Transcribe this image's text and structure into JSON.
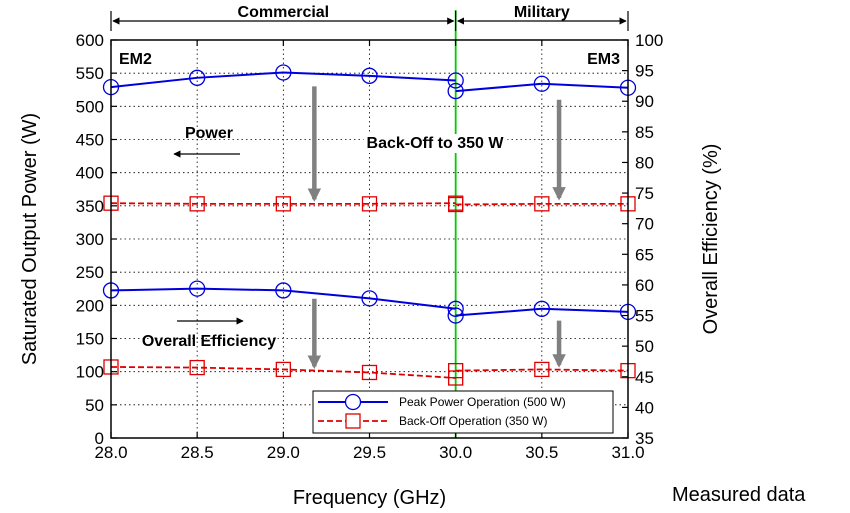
{
  "chart_data": {
    "type": "line",
    "xlabel": "Frequency (GHz)",
    "ylabel_left": "Saturated Output Power (W)",
    "ylabel_right": "Overall Efficiency (%)",
    "x_ticks": [
      "28.0",
      "28.5",
      "29.0",
      "29.5",
      "30.0",
      "30.5",
      "31.0"
    ],
    "y_left_ticks": [
      "0",
      "50",
      "100",
      "150",
      "200",
      "250",
      "300",
      "350",
      "400",
      "450",
      "500",
      "550",
      "600"
    ],
    "y_right_ticks": [
      "35",
      "40",
      "45",
      "50",
      "55",
      "60",
      "65",
      "70",
      "75",
      "80",
      "85",
      "90",
      "95",
      "100"
    ],
    "xlim": [
      28.0,
      31.0
    ],
    "ylim_left": [
      0,
      600
    ],
    "ylim_right": [
      35,
      100
    ],
    "grid": true,
    "legend_position": "bottom-right",
    "colors": {
      "peak": "#0000dd",
      "backoff": "#dd0000",
      "divider": "#00cc00",
      "arrow": "#808080"
    },
    "series": [
      {
        "name": "Peak Power Operation (500 W)",
        "quantity": "Power",
        "axis": "left",
        "style": "peak",
        "x": [
          28.0,
          28.5,
          29.0,
          29.5,
          30.0
        ],
        "y": [
          529,
          543,
          551,
          546,
          539
        ]
      },
      {
        "name": "Peak Power Operation (500 W)",
        "quantity": "Power",
        "axis": "left",
        "style": "peak",
        "x": [
          30.0,
          30.5,
          31.0
        ],
        "y": [
          523,
          534,
          528
        ]
      },
      {
        "name": "Back-Off Operation (350 W)",
        "quantity": "Power",
        "axis": "left",
        "style": "backoff",
        "x": [
          28.0,
          28.5,
          29.0,
          29.5,
          30.0
        ],
        "y": [
          354,
          353,
          353,
          353,
          354
        ]
      },
      {
        "name": "Back-Off Operation (350 W)",
        "quantity": "Power",
        "axis": "left",
        "style": "backoff",
        "x": [
          30.0,
          30.5,
          31.0
        ],
        "y": [
          352,
          353,
          353
        ]
      },
      {
        "name": "Peak Power Operation (500 W)",
        "quantity": "Overall Efficiency",
        "axis": "right",
        "style": "peak",
        "x": [
          28.0,
          28.5,
          29.0,
          29.5,
          30.0
        ],
        "y": [
          59.1,
          59.4,
          59.1,
          57.8,
          56.1
        ]
      },
      {
        "name": "Peak Power Operation (500 W)",
        "quantity": "Overall Efficiency",
        "axis": "right",
        "style": "peak",
        "x": [
          30.0,
          30.5,
          31.0
        ],
        "y": [
          55.0,
          56.1,
          55.6
        ]
      },
      {
        "name": "Back-Off Operation (350 W)",
        "quantity": "Overall Efficiency",
        "axis": "right",
        "style": "backoff",
        "x": [
          28.0,
          28.5,
          29.0,
          29.5,
          30.0
        ],
        "y": [
          46.6,
          46.5,
          46.2,
          45.7,
          44.8
        ]
      },
      {
        "name": "Back-Off Operation (350 W)",
        "quantity": "Overall Efficiency",
        "axis": "right",
        "style": "backoff",
        "x": [
          30.0,
          30.5,
          31.0
        ],
        "y": [
          46.0,
          46.2,
          46.0
        ]
      }
    ],
    "vertical_line_x": 30.0,
    "annotations": {
      "band_commercial": "Commercial",
      "band_military": "Military",
      "em2": "EM2",
      "em3": "EM3",
      "power": "Power",
      "overall_efficiency": "Overall Efficiency",
      "backoff_note": "Back-Off to 350 W"
    },
    "legend": [
      {
        "label": "Peak Power Operation (500 W)",
        "style": "peak"
      },
      {
        "label": "Back-Off Operation (350 W)",
        "style": "backoff"
      }
    ],
    "down_arrows": [
      {
        "x": 29.18,
        "from_left": 530,
        "to_left": 360
      },
      {
        "x": 30.6,
        "from_left": 510,
        "to_left": 362
      },
      {
        "x": 29.18,
        "from_left": 210,
        "to_left": 108
      },
      {
        "x": 30.6,
        "from_left": 177,
        "to_left": 110
      }
    ]
  },
  "caption": "Measured data"
}
